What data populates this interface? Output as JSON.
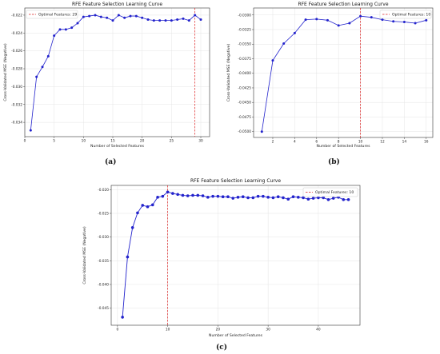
{
  "panel_labels": [
    "(a)",
    "(b)",
    "(c)"
  ],
  "chart_data": [
    {
      "type": "line",
      "title": "RFE Feature Selection Learning Curve",
      "xlabel": "Number of Selected Features",
      "ylabel": "Cross-Validated MSE (Negative)",
      "xlim": [
        0,
        31.5
      ],
      "ylim": [
        -0.0356,
        -0.0212
      ],
      "xticks": [
        0,
        5,
        10,
        15,
        20,
        25,
        30
      ],
      "yticks": [
        -0.034,
        -0.032,
        -0.03,
        -0.028,
        -0.026,
        -0.024,
        -0.022
      ],
      "ytick_labels": [
        "-0.034",
        "-0.032",
        "-0.030",
        "-0.028",
        "-0.026",
        "-0.024",
        "-0.022"
      ],
      "grid": true,
      "legend_position": "top-left",
      "line_color": "#2222cc",
      "vline_color": "#dd2222",
      "optimal_line": {
        "x": 29,
        "label": "Optimal Features: 29"
      },
      "series": [
        {
          "x": [
            1,
            2,
            3,
            4,
            5,
            6,
            7,
            8,
            9,
            10,
            11,
            12,
            13,
            14,
            15,
            16,
            17,
            18,
            19,
            20,
            21,
            22,
            23,
            24,
            25,
            26,
            27,
            28,
            29,
            30
          ],
          "values": [
            -0.0349,
            -0.0289,
            -0.0278,
            -0.0266,
            -0.0243,
            -0.0236,
            -0.0236,
            -0.0234,
            -0.0229,
            -0.0222,
            -0.0221,
            -0.022,
            -0.0222,
            -0.0223,
            -0.0226,
            -0.022,
            -0.0223,
            -0.0221,
            -0.0221,
            -0.0223,
            -0.0225,
            -0.0226,
            -0.0226,
            -0.0226,
            -0.0226,
            -0.0225,
            -0.0224,
            -0.0226,
            -0.022,
            -0.0225
          ]
        }
      ]
    },
    {
      "type": "line",
      "title": "RFE Feature Selection Learning Curve",
      "xlabel": "Number of Selected Features",
      "ylabel": "Cross-Validated MSE (Negative)",
      "xlim": [
        0.25,
        16.6
      ],
      "ylim": [
        -0.051,
        -0.0288
      ],
      "xticks": [
        2,
        4,
        6,
        8,
        10,
        12,
        14,
        16
      ],
      "yticks": [
        -0.05,
        -0.0475,
        -0.045,
        -0.0425,
        -0.04,
        -0.0375,
        -0.035,
        -0.0325,
        -0.03
      ],
      "ytick_labels": [
        "-0.0500",
        "-0.0475",
        "-0.0450",
        "-0.0425",
        "-0.0400",
        "-0.0375",
        "-0.0350",
        "-0.0325",
        "-0.0300"
      ],
      "grid": true,
      "legend_position": "top-right",
      "line_color": "#2222cc",
      "vline_color": "#dd2222",
      "optimal_line": {
        "x": 10,
        "label": "Optimal Features: 10"
      },
      "series": [
        {
          "x": [
            1,
            2,
            3,
            4,
            5,
            6,
            7,
            8,
            9,
            10,
            11,
            12,
            13,
            14,
            15,
            16
          ],
          "values": [
            -0.05,
            -0.0378,
            -0.0349,
            -0.0331,
            -0.0308,
            -0.0307,
            -0.0309,
            -0.0318,
            -0.0314,
            -0.0302,
            -0.0304,
            -0.0308,
            -0.0311,
            -0.0312,
            -0.0314,
            -0.0309
          ]
        }
      ]
    },
    {
      "type": "line",
      "title": "RFE Feature Selection Learning Curve",
      "xlabel": "Number of Selected Features",
      "ylabel": "Cross-Validated MSE (Negative)",
      "xlim": [
        -1.25,
        48.3
      ],
      "ylim": [
        -0.0486,
        -0.0191
      ],
      "xticks": [
        0,
        10,
        20,
        30,
        40
      ],
      "yticks": [
        -0.045,
        -0.04,
        -0.035,
        -0.03,
        -0.025,
        -0.02
      ],
      "ytick_labels": [
        "-0.045",
        "-0.040",
        "-0.035",
        "-0.030",
        "-0.025",
        "-0.020"
      ],
      "grid": true,
      "legend_position": "top-right",
      "line_color": "#2222cc",
      "vline_color": "#dd2222",
      "optimal_line": {
        "x": 10,
        "label": "Optimal Features: 10"
      },
      "series": [
        {
          "x": [
            1,
            2,
            3,
            4,
            5,
            6,
            7,
            8,
            9,
            10,
            11,
            12,
            13,
            14,
            15,
            16,
            17,
            18,
            19,
            20,
            21,
            22,
            23,
            24,
            25,
            26,
            27,
            28,
            29,
            30,
            31,
            32,
            33,
            34,
            35,
            36,
            37,
            38,
            39,
            40,
            41,
            42,
            43,
            44,
            45,
            46
          ],
          "values": [
            -0.0469,
            -0.0342,
            -0.028,
            -0.0249,
            -0.0233,
            -0.0236,
            -0.0232,
            -0.0216,
            -0.0214,
            -0.0205,
            -0.0208,
            -0.021,
            -0.0212,
            -0.0213,
            -0.0212,
            -0.0212,
            -0.0213,
            -0.0216,
            -0.0214,
            -0.0214,
            -0.0215,
            -0.0215,
            -0.0218,
            -0.0216,
            -0.0215,
            -0.0217,
            -0.0217,
            -0.0214,
            -0.0214,
            -0.0216,
            -0.0217,
            -0.0215,
            -0.0217,
            -0.022,
            -0.0215,
            -0.0216,
            -0.0217,
            -0.022,
            -0.0218,
            -0.0217,
            -0.0217,
            -0.0221,
            -0.0218,
            -0.0216,
            -0.0221,
            -0.0221
          ]
        }
      ]
    }
  ]
}
